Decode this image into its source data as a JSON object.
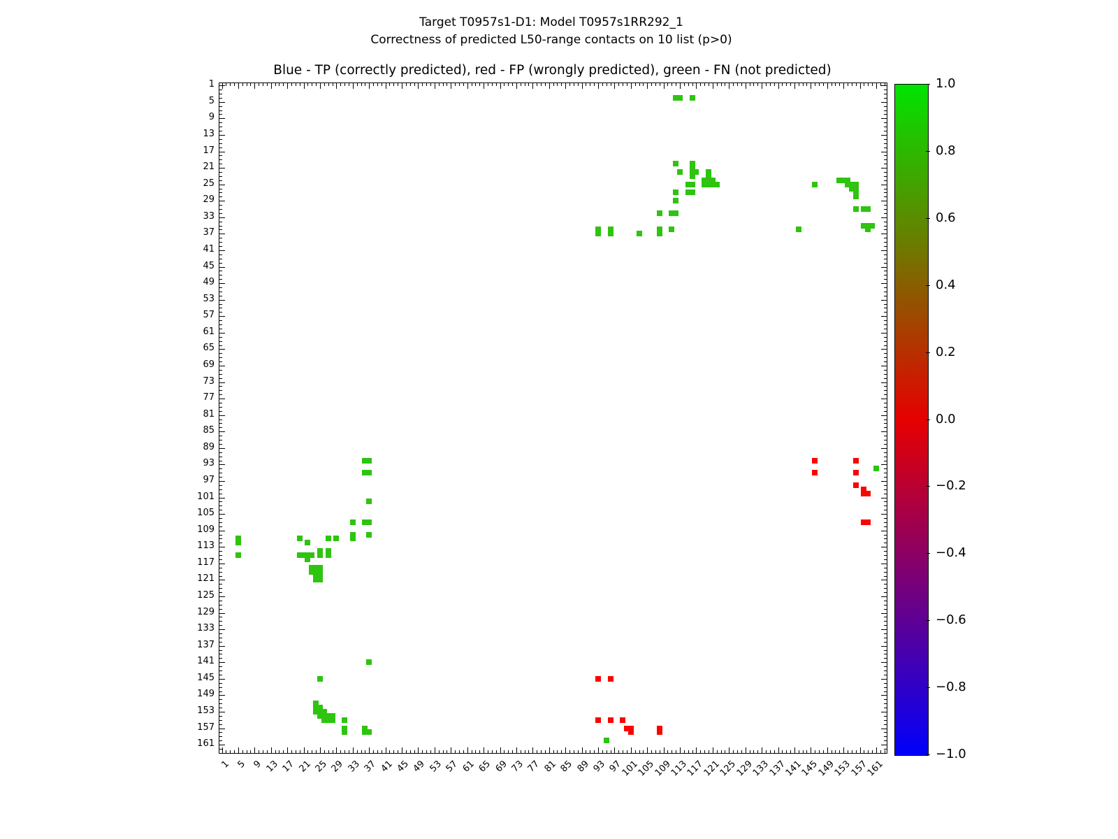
{
  "header": {
    "suptitle_line1": "Target T0957s1-D1: Model T0957s1RR292_1",
    "suptitle_line2": "Correctness of predicted L50-range contacts on 10 list (p>0)"
  },
  "chart_data": {
    "type": "scatter",
    "title": "Blue - TP (correctly predicted), red - FP (wrongly predicted), green - FN (not predicted)",
    "axes": {
      "x_range": [
        1,
        163
      ],
      "y_range": [
        1,
        163
      ],
      "y_inverted": true,
      "major_tick_step": 4,
      "minor_tick_step": 1,
      "x_ticklabels": [
        "1",
        "5",
        "9",
        "13",
        "17",
        "21",
        "25",
        "29",
        "33",
        "37",
        "41",
        "45",
        "49",
        "53",
        "57",
        "61",
        "65",
        "69",
        "73",
        "77",
        "81",
        "85",
        "89",
        "93",
        "97",
        "101",
        "105",
        "109",
        "113",
        "117",
        "121",
        "125",
        "129",
        "133",
        "137",
        "141",
        "145",
        "149",
        "153",
        "157",
        "161"
      ],
      "y_ticklabels": [
        "1",
        "5",
        "9",
        "13",
        "17",
        "21",
        "25",
        "29",
        "33",
        "37",
        "41",
        "45",
        "49",
        "53",
        "57",
        "61",
        "65",
        "69",
        "73",
        "77",
        "81",
        "85",
        "89",
        "93",
        "97",
        "101",
        "105",
        "109",
        "113",
        "117",
        "121",
        "125",
        "129",
        "133",
        "137",
        "141",
        "145",
        "149",
        "153",
        "157",
        "161"
      ]
    },
    "series": [
      {
        "name": "FN (not predicted)",
        "color": "#2ec40f",
        "marker": "square",
        "points": [
          [
            112,
            4
          ],
          [
            113,
            4
          ],
          [
            116,
            4
          ],
          [
            112,
            20
          ],
          [
            116,
            20
          ],
          [
            116,
            21
          ],
          [
            113,
            22
          ],
          [
            116,
            22
          ],
          [
            117,
            22
          ],
          [
            120,
            22
          ],
          [
            116,
            23
          ],
          [
            120,
            23
          ],
          [
            119,
            24
          ],
          [
            120,
            24
          ],
          [
            121,
            24
          ],
          [
            152,
            24
          ],
          [
            153,
            24
          ],
          [
            154,
            24
          ],
          [
            115,
            25
          ],
          [
            116,
            25
          ],
          [
            119,
            25
          ],
          [
            120,
            25
          ],
          [
            121,
            25
          ],
          [
            122,
            25
          ],
          [
            146,
            25
          ],
          [
            154,
            25
          ],
          [
            155,
            25
          ],
          [
            156,
            25
          ],
          [
            155,
            26
          ],
          [
            156,
            26
          ],
          [
            112,
            27
          ],
          [
            115,
            27
          ],
          [
            116,
            27
          ],
          [
            156,
            27
          ],
          [
            156,
            28
          ],
          [
            112,
            29
          ],
          [
            156,
            31
          ],
          [
            158,
            31
          ],
          [
            159,
            31
          ],
          [
            108,
            32
          ],
          [
            111,
            32
          ],
          [
            112,
            32
          ],
          [
            158,
            35
          ],
          [
            159,
            35
          ],
          [
            160,
            35
          ],
          [
            93,
            36
          ],
          [
            96,
            36
          ],
          [
            108,
            36
          ],
          [
            111,
            36
          ],
          [
            142,
            36
          ],
          [
            159,
            36
          ],
          [
            93,
            37
          ],
          [
            96,
            37
          ],
          [
            103,
            37
          ],
          [
            108,
            37
          ],
          [
            36,
            92
          ],
          [
            37,
            92
          ],
          [
            161,
            94
          ],
          [
            36,
            95
          ],
          [
            37,
            95
          ],
          [
            37,
            102
          ],
          [
            33,
            107
          ],
          [
            36,
            107
          ],
          [
            37,
            107
          ],
          [
            33,
            110
          ],
          [
            37,
            110
          ],
          [
            5,
            111
          ],
          [
            20,
            111
          ],
          [
            27,
            111
          ],
          [
            29,
            111
          ],
          [
            33,
            111
          ],
          [
            5,
            112
          ],
          [
            22,
            112
          ],
          [
            25,
            114
          ],
          [
            27,
            114
          ],
          [
            5,
            115
          ],
          [
            20,
            115
          ],
          [
            21,
            115
          ],
          [
            22,
            115
          ],
          [
            23,
            115
          ],
          [
            25,
            115
          ],
          [
            27,
            115
          ],
          [
            22,
            116
          ],
          [
            23,
            118
          ],
          [
            24,
            118
          ],
          [
            25,
            118
          ],
          [
            23,
            119
          ],
          [
            24,
            119
          ],
          [
            25,
            119
          ],
          [
            24,
            120
          ],
          [
            25,
            120
          ],
          [
            24,
            121
          ],
          [
            25,
            121
          ],
          [
            37,
            141
          ],
          [
            25,
            145
          ],
          [
            24,
            151
          ],
          [
            24,
            152
          ],
          [
            25,
            152
          ],
          [
            24,
            153
          ],
          [
            25,
            153
          ],
          [
            26,
            153
          ],
          [
            25,
            154
          ],
          [
            26,
            154
          ],
          [
            27,
            154
          ],
          [
            28,
            154
          ],
          [
            26,
            155
          ],
          [
            27,
            155
          ],
          [
            28,
            155
          ],
          [
            31,
            155
          ],
          [
            31,
            157
          ],
          [
            36,
            157
          ],
          [
            31,
            158
          ],
          [
            36,
            158
          ],
          [
            37,
            158
          ],
          [
            95,
            160
          ]
        ]
      },
      {
        "name": "FP (wrongly predicted)",
        "color": "#fa0400",
        "marker": "square",
        "points": [
          [
            146,
            92
          ],
          [
            156,
            92
          ],
          [
            146,
            95
          ],
          [
            156,
            95
          ],
          [
            156,
            98
          ],
          [
            158,
            99
          ],
          [
            158,
            100
          ],
          [
            159,
            100
          ],
          [
            158,
            107
          ],
          [
            159,
            107
          ],
          [
            93,
            145
          ],
          [
            96,
            145
          ],
          [
            93,
            155
          ],
          [
            96,
            155
          ],
          [
            99,
            155
          ],
          [
            100,
            157
          ],
          [
            101,
            157
          ],
          [
            108,
            157
          ],
          [
            101,
            158
          ],
          [
            108,
            158
          ]
        ]
      },
      {
        "name": "TP (correctly predicted)",
        "color": "#0000ff",
        "marker": "square",
        "points": []
      }
    ],
    "colorbar": {
      "vmin": -1.0,
      "vmax": 1.0,
      "tick_values": [
        1.0,
        0.8,
        0.6,
        0.4,
        0.2,
        0.0,
        -0.2,
        -0.4,
        -0.6,
        -0.8,
        -1.0
      ],
      "tick_labels": [
        "1.0",
        "0.8",
        "0.6",
        "0.4",
        "0.2",
        "0.0",
        "−0.2",
        "−0.4",
        "−0.6",
        "−0.8",
        "−1.0"
      ],
      "gradient_stops": [
        {
          "value": 1.0,
          "color": "#00e400"
        },
        {
          "value": 0.5,
          "color": "#717600"
        },
        {
          "value": 0.0,
          "color": "#e60000"
        },
        {
          "value": -0.5,
          "color": "#75007c"
        },
        {
          "value": -1.0,
          "color": "#0000fa"
        }
      ]
    }
  }
}
